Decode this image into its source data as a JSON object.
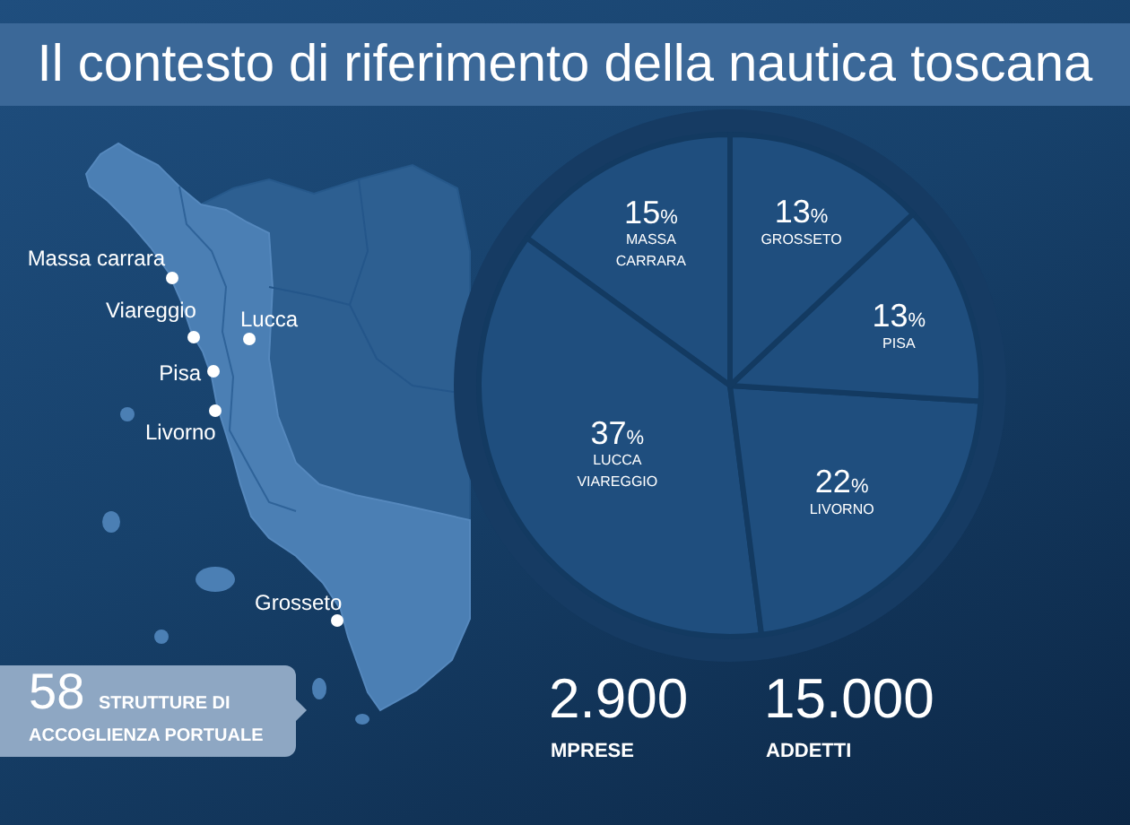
{
  "chart_data": {
    "type": "pie",
    "title": "Il contesto di riferimento della nautica toscana",
    "categories": [
      "MASSA CARRARA",
      "LUCCA VIAREGGIO",
      "LIVORNO",
      "PISA",
      "GROSSETO"
    ],
    "values": [
      15,
      37,
      22,
      13,
      13
    ],
    "value_labels": [
      "15%",
      "37%",
      "22%",
      "13%",
      "13%"
    ],
    "colors": [
      "#1f4e7e",
      "#1f4e7e",
      "#1f4e7e",
      "#1f4e7e",
      "#1f4e7e"
    ],
    "legend": false,
    "annotations": [
      "Massa carrara",
      "Viareggio",
      "Lucca",
      "Pisa",
      "Livorno",
      "Grosseto",
      "58 STRUTTURE DI ACCOGLIENZA PORTUALE",
      "2.900",
      "MPRESE",
      "15.000",
      "ADDETTI"
    ]
  }
}
